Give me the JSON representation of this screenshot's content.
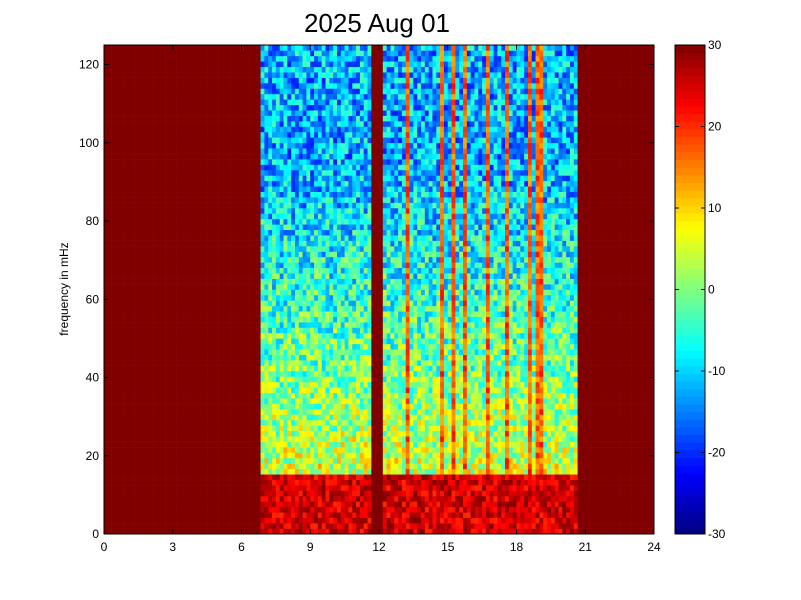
{
  "chart_data": {
    "type": "heatmap",
    "title": "2025 Aug 01",
    "xlabel": "",
    "ylabel": "frequency in mHz",
    "x_range": [
      0,
      24
    ],
    "y_range": [
      0,
      125
    ],
    "x_ticks": [
      0,
      3,
      6,
      9,
      12,
      15,
      18,
      21,
      24
    ],
    "y_ticks": [
      0,
      20,
      40,
      60,
      80,
      100,
      120
    ],
    "colorbar": {
      "range": [
        -30,
        30
      ],
      "ticks": [
        -30,
        -20,
        -10,
        0,
        10,
        20,
        30
      ],
      "colormap": "jet"
    },
    "grid": false,
    "saturated_regions": [
      {
        "x_start": 0,
        "x_end": 6.8,
        "value": 30
      },
      {
        "x_start": 20.6,
        "x_end": 24,
        "value": 30
      },
      {
        "x_start": 11.6,
        "x_end": 12.1,
        "value": 30
      }
    ],
    "low_frequency_band": {
      "y_start": 0,
      "y_end": 15,
      "value": 25
    },
    "mid_frequency_typical": {
      "y": 40,
      "value": 5
    },
    "high_frequency_typical": {
      "y": 120,
      "value": -12
    },
    "vertical_lines_x": [
      13.2,
      14.7,
      15.3,
      15.8,
      16.7,
      17.6,
      18.6,
      19.0
    ]
  },
  "colors": {
    "background": "#ffffff",
    "saturated": "#800000",
    "axis": "#000000"
  }
}
